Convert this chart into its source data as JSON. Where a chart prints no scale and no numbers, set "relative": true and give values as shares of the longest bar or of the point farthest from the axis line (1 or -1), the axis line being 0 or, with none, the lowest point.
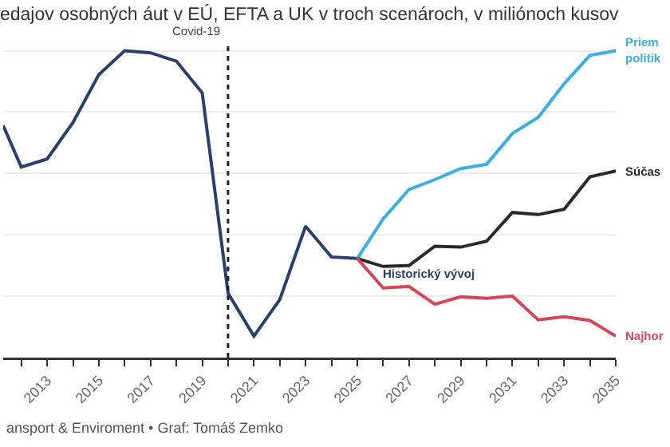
{
  "chart_data": {
    "type": "line",
    "relative": true,
    "title": "edajov osobných áut v EÚ, EFTA a UK v troch scenároch, v miliónoch kusov",
    "xlim": [
      2011.3,
      2035
    ],
    "xticks": [
      {
        "value": 2012,
        "label": null
      },
      2013,
      {
        "value": 2014,
        "label": null
      },
      2015,
      {
        "value": 2016,
        "label": null
      },
      2017,
      {
        "value": 2018,
        "label": null
      },
      2019,
      {
        "value": 2020,
        "label": null
      },
      2021,
      {
        "value": 2022,
        "label": null
      },
      2023,
      {
        "value": 2024,
        "label": null
      },
      2025,
      {
        "value": 2026,
        "label": null
      },
      2027,
      {
        "value": 2028,
        "label": null
      },
      2029,
      {
        "value": 2030,
        "label": null
      },
      2031,
      {
        "value": 2032,
        "label": null
      },
      2033,
      {
        "value": 2034,
        "label": null
      },
      2035
    ],
    "grid": "y",
    "legend": false,
    "line_style": "solid",
    "marker": "none",
    "series": [
      {
        "name": "Historický vývoj",
        "color": "#2b3f6e",
        "x": [
          2011.3,
          2012,
          2013,
          2014,
          2015,
          2016,
          2017,
          2018,
          2019,
          2020,
          2021,
          2022,
          2023,
          2024,
          2025
        ],
        "values": [
          0.756,
          0.621,
          0.647,
          0.766,
          0.922,
          1,
          0.993,
          0.966,
          0.863,
          0.21,
          0.07,
          0.189,
          0.428,
          0.328,
          0.323
        ]
      },
      {
        "name": "Priem\npolitik",
        "color": "#3ab0e2",
        "x": [
          2025,
          2026,
          2027,
          2028,
          2029,
          2030,
          2031,
          2032,
          2033,
          2034,
          2035
        ],
        "values": [
          0.323,
          0.452,
          0.548,
          0.58,
          0.616,
          0.63,
          0.73,
          0.783,
          0.892,
          0.985,
          1
        ]
      },
      {
        "name": "Súčas",
        "color": "#2a2a2a",
        "x": [
          2025,
          2026,
          2027,
          2028,
          2029,
          2030,
          2031,
          2032,
          2033,
          2034,
          2035
        ],
        "values": [
          0.323,
          0.297,
          0.3,
          0.363,
          0.36,
          0.379,
          0.473,
          0.466,
          0.483,
          0.589,
          0.608
        ]
      },
      {
        "name": "Najhor",
        "color": "#d6455a",
        "x": [
          2025,
          2026,
          2027,
          2028,
          2029,
          2030,
          2031,
          2032,
          2033,
          2034,
          2035
        ],
        "values": [
          0.323,
          0.227,
          0.232,
          0.174,
          0.198,
          0.193,
          0.201,
          0.123,
          0.133,
          0.121,
          0.07
        ]
      }
    ],
    "ref_lines": [
      {
        "axis": "x",
        "value": 2020,
        "label": "Covid-19",
        "line_style": "dotted",
        "color": "#222222"
      }
    ],
    "annotations": [
      "ansport & Enviroment • Graf: Tomáš Zemko"
    ]
  }
}
